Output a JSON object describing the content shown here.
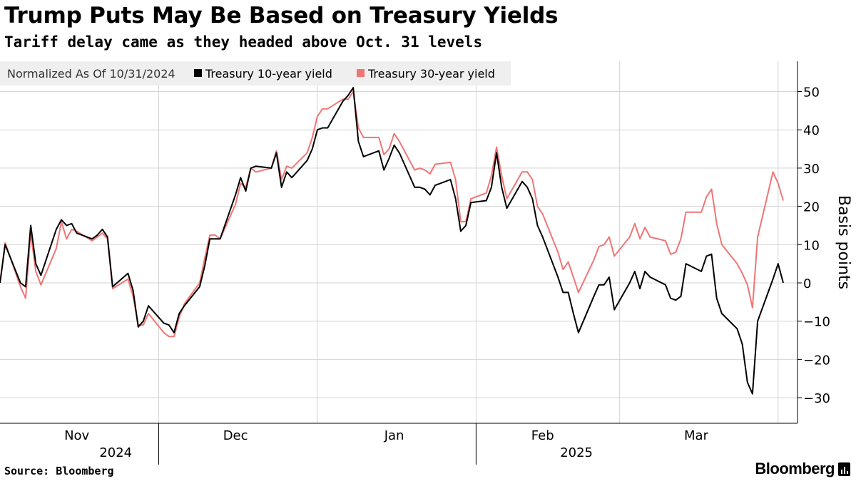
{
  "title": "Trump Puts May Be Based on Treasury Yields",
  "subtitle": "Tariff delay came as they headed above Oct. 31 levels",
  "footer": {
    "source": "Source: Bloomberg",
    "brand": "Bloomberg"
  },
  "colors": {
    "ten_year": "#000000",
    "thirty_year": "#f07575",
    "grid": "#d4d4d4",
    "legend_bg": "#efefef"
  },
  "chart_data": {
    "type": "line",
    "ylabel": "Basis points",
    "ylim": [
      -35,
      58
    ],
    "yticks": [
      50,
      40,
      30,
      20,
      10,
      0,
      -10,
      -20,
      -30
    ],
    "legend": {
      "note": "Normalized As Of 10/31/2024",
      "entries": [
        "Treasury 10-year yield",
        "Treasury 30-year yield"
      ],
      "placement": "top-left"
    },
    "x_month_labels": [
      "Nov",
      "Dec",
      "Jan",
      "Feb",
      "Mar"
    ],
    "x_year_labels": [
      "2024",
      "2025"
    ],
    "x_start": "2024-10-31",
    "x_end": "2025-04-11",
    "series": [
      {
        "name": "Treasury 10-year yield",
        "color": "#000000",
        "points": [
          [
            "2024-10-31",
            0
          ],
          [
            "2024-11-01",
            10
          ],
          [
            "2024-11-04",
            0
          ],
          [
            "2024-11-05",
            -1
          ],
          [
            "2024-11-06",
            15
          ],
          [
            "2024-11-07",
            5
          ],
          [
            "2024-11-08",
            2
          ],
          [
            "2024-11-11",
            14
          ],
          [
            "2024-11-12",
            16.5
          ],
          [
            "2024-11-13",
            15
          ],
          [
            "2024-11-14",
            15.5
          ],
          [
            "2024-11-15",
            13
          ],
          [
            "2024-11-18",
            11.5
          ],
          [
            "2024-11-19",
            12.5
          ],
          [
            "2024-11-20",
            14
          ],
          [
            "2024-11-21",
            12
          ],
          [
            "2024-11-22",
            -1
          ],
          [
            "2024-11-25",
            2.5
          ],
          [
            "2024-11-26",
            -2
          ],
          [
            "2024-11-27",
            -11.5
          ],
          [
            "2024-11-28",
            -10
          ],
          [
            "2024-11-29",
            -6
          ],
          [
            "2024-12-02",
            -10.5
          ],
          [
            "2024-12-03",
            -11
          ],
          [
            "2024-12-04",
            -13
          ],
          [
            "2024-12-05",
            -8
          ],
          [
            "2024-12-06",
            -6
          ],
          [
            "2024-12-09",
            -1
          ],
          [
            "2024-12-10",
            4.5
          ],
          [
            "2024-12-11",
            11.5
          ],
          [
            "2024-12-12",
            11.5
          ],
          [
            "2024-12-13",
            11.5
          ],
          [
            "2024-12-16",
            23
          ],
          [
            "2024-12-17",
            27.5
          ],
          [
            "2024-12-18",
            24
          ],
          [
            "2024-12-19",
            30
          ],
          [
            "2024-12-20",
            30.5
          ],
          [
            "2024-12-23",
            30
          ],
          [
            "2024-12-24",
            34
          ],
          [
            "2024-12-25",
            25
          ],
          [
            "2024-12-26",
            29
          ],
          [
            "2024-12-27",
            27.5
          ],
          [
            "2024-12-30",
            32
          ],
          [
            "2024-12-31",
            35
          ],
          [
            "2025-01-01",
            40
          ],
          [
            "2025-01-02",
            40.5
          ],
          [
            "2025-01-03",
            40.5
          ],
          [
            "2025-01-06",
            47.5
          ],
          [
            "2025-01-07",
            49
          ],
          [
            "2025-01-08",
            51
          ],
          [
            "2025-01-09",
            37
          ],
          [
            "2025-01-10",
            33
          ],
          [
            "2025-01-13",
            34.5
          ],
          [
            "2025-01-14",
            29.5
          ],
          [
            "2025-01-15",
            32.5
          ],
          [
            "2025-01-16",
            36
          ],
          [
            "2025-01-17",
            34
          ],
          [
            "2025-01-20",
            25
          ],
          [
            "2025-01-21",
            25
          ],
          [
            "2025-01-22",
            24.5
          ],
          [
            "2025-01-23",
            23
          ],
          [
            "2025-01-24",
            25.5
          ],
          [
            "2025-01-27",
            27
          ],
          [
            "2025-01-28",
            22
          ],
          [
            "2025-01-29",
            13.5
          ],
          [
            "2025-01-30",
            15
          ],
          [
            "2025-01-31",
            21
          ],
          [
            "2025-02-03",
            21.5
          ],
          [
            "2025-02-04",
            25
          ],
          [
            "2025-02-05",
            34
          ],
          [
            "2025-02-06",
            25
          ],
          [
            "2025-02-07",
            19.5
          ],
          [
            "2025-02-10",
            26.5
          ],
          [
            "2025-02-11",
            25
          ],
          [
            "2025-02-12",
            22
          ],
          [
            "2025-02-13",
            15
          ],
          [
            "2025-02-14",
            12
          ],
          [
            "2025-02-17",
            1.5
          ],
          [
            "2025-02-18",
            -2.5
          ],
          [
            "2025-02-19",
            -2.5
          ],
          [
            "2025-02-20",
            -8
          ],
          [
            "2025-02-21",
            -13
          ],
          [
            "2025-02-24",
            -3.5
          ],
          [
            "2025-02-25",
            -0.5
          ],
          [
            "2025-02-26",
            -0.5
          ],
          [
            "2025-02-27",
            1.5
          ],
          [
            "2025-02-28",
            -7
          ],
          [
            "2025-03-03",
            0
          ],
          [
            "2025-03-04",
            3
          ],
          [
            "2025-03-05",
            -1.5
          ],
          [
            "2025-03-06",
            3
          ],
          [
            "2025-03-07",
            1.5
          ],
          [
            "2025-03-10",
            -0.5
          ],
          [
            "2025-03-11",
            -4
          ],
          [
            "2025-03-12",
            -4.5
          ],
          [
            "2025-03-13",
            -3.5
          ],
          [
            "2025-03-14",
            5
          ],
          [
            "2025-03-17",
            3
          ],
          [
            "2025-03-18",
            7
          ],
          [
            "2025-03-19",
            7.5
          ],
          [
            "2025-03-20",
            -4
          ],
          [
            "2025-03-21",
            -8
          ],
          [
            "2025-03-24",
            -12
          ],
          [
            "2025-03-25",
            -16
          ],
          [
            "2025-03-26",
            -26
          ],
          [
            "2025-03-27",
            -29
          ],
          [
            "2025-03-28",
            -10
          ],
          [
            "2025-03-31",
            1
          ],
          [
            "2025-04-01",
            5
          ],
          [
            "2025-04-02",
            0
          ]
        ]
      },
      {
        "name": "Treasury 30-year yield",
        "color": "#f07575",
        "points": [
          [
            "2024-10-31",
            0
          ],
          [
            "2024-11-01",
            10.5
          ],
          [
            "2024-11-04",
            -1
          ],
          [
            "2024-11-05",
            -4
          ],
          [
            "2024-11-06",
            13
          ],
          [
            "2024-11-07",
            3
          ],
          [
            "2024-11-08",
            -0.5
          ],
          [
            "2024-11-11",
            9
          ],
          [
            "2024-11-12",
            16
          ],
          [
            "2024-11-13",
            11.5
          ],
          [
            "2024-11-14",
            14
          ],
          [
            "2024-11-15",
            13.5
          ],
          [
            "2024-11-18",
            11
          ],
          [
            "2024-11-19",
            12
          ],
          [
            "2024-11-20",
            13
          ],
          [
            "2024-11-21",
            11.5
          ],
          [
            "2024-11-22",
            -1.5
          ],
          [
            "2024-11-25",
            1
          ],
          [
            "2024-11-26",
            -3.5
          ],
          [
            "2024-11-27",
            -11
          ],
          [
            "2024-11-28",
            -11
          ],
          [
            "2024-11-29",
            -8
          ],
          [
            "2024-12-02",
            -13
          ],
          [
            "2024-12-03",
            -14
          ],
          [
            "2024-12-04",
            -14
          ],
          [
            "2024-12-05",
            -9
          ],
          [
            "2024-12-06",
            -5.5
          ],
          [
            "2024-12-09",
            0
          ],
          [
            "2024-12-10",
            6.5
          ],
          [
            "2024-12-11",
            12.5
          ],
          [
            "2024-12-12",
            12.5
          ],
          [
            "2024-12-13",
            11.5
          ],
          [
            "2024-12-16",
            20.5
          ],
          [
            "2024-12-17",
            26
          ],
          [
            "2024-12-18",
            25
          ],
          [
            "2024-12-19",
            30
          ],
          [
            "2024-12-20",
            29
          ],
          [
            "2024-12-23",
            30
          ],
          [
            "2024-12-24",
            34.5
          ],
          [
            "2024-12-25",
            27
          ],
          [
            "2024-12-26",
            30.5
          ],
          [
            "2024-12-27",
            30
          ],
          [
            "2024-12-30",
            34
          ],
          [
            "2024-12-31",
            38
          ],
          [
            "2025-01-01",
            43.5
          ],
          [
            "2025-01-02",
            45.5
          ],
          [
            "2025-01-03",
            45.5
          ],
          [
            "2025-01-06",
            48
          ],
          [
            "2025-01-07",
            48
          ],
          [
            "2025-01-08",
            50
          ],
          [
            "2025-01-09",
            40.5
          ],
          [
            "2025-01-10",
            38
          ],
          [
            "2025-01-13",
            38
          ],
          [
            "2025-01-14",
            33.5
          ],
          [
            "2025-01-15",
            35
          ],
          [
            "2025-01-16",
            39
          ],
          [
            "2025-01-17",
            37
          ],
          [
            "2025-01-20",
            29.5
          ],
          [
            "2025-01-21",
            30
          ],
          [
            "2025-01-22",
            29.5
          ],
          [
            "2025-01-23",
            28.5
          ],
          [
            "2025-01-24",
            31
          ],
          [
            "2025-01-27",
            31.5
          ],
          [
            "2025-01-28",
            27
          ],
          [
            "2025-01-29",
            16
          ],
          [
            "2025-01-30",
            16
          ],
          [
            "2025-01-31",
            22
          ],
          [
            "2025-02-03",
            23.5
          ],
          [
            "2025-02-04",
            28
          ],
          [
            "2025-02-05",
            35.5
          ],
          [
            "2025-02-06",
            28
          ],
          [
            "2025-02-07",
            22
          ],
          [
            "2025-02-10",
            29
          ],
          [
            "2025-02-11",
            29
          ],
          [
            "2025-02-12",
            27
          ],
          [
            "2025-02-13",
            20
          ],
          [
            "2025-02-14",
            18
          ],
          [
            "2025-02-17",
            8
          ],
          [
            "2025-02-18",
            3.5
          ],
          [
            "2025-02-19",
            5.5
          ],
          [
            "2025-02-20",
            1.5
          ],
          [
            "2025-02-21",
            -2.5
          ],
          [
            "2025-02-24",
            6
          ],
          [
            "2025-02-25",
            9.5
          ],
          [
            "2025-02-26",
            10
          ],
          [
            "2025-02-27",
            12
          ],
          [
            "2025-02-28",
            7
          ],
          [
            "2025-03-03",
            12
          ],
          [
            "2025-03-04",
            15.5
          ],
          [
            "2025-03-05",
            11.5
          ],
          [
            "2025-03-06",
            14.5
          ],
          [
            "2025-03-07",
            12
          ],
          [
            "2025-03-10",
            11
          ],
          [
            "2025-03-11",
            7.5
          ],
          [
            "2025-03-12",
            8
          ],
          [
            "2025-03-13",
            11.5
          ],
          [
            "2025-03-14",
            18.5
          ],
          [
            "2025-03-17",
            18.5
          ],
          [
            "2025-03-18",
            22.5
          ],
          [
            "2025-03-19",
            24.5
          ],
          [
            "2025-03-20",
            15.5
          ],
          [
            "2025-03-21",
            10
          ],
          [
            "2025-03-24",
            5
          ],
          [
            "2025-03-25",
            2.5
          ],
          [
            "2025-03-26",
            -0.5
          ],
          [
            "2025-03-27",
            -6.5
          ],
          [
            "2025-03-28",
            12
          ],
          [
            "2025-03-31",
            29
          ],
          [
            "2025-04-01",
            26
          ],
          [
            "2025-04-02",
            21.5
          ]
        ]
      }
    ]
  }
}
